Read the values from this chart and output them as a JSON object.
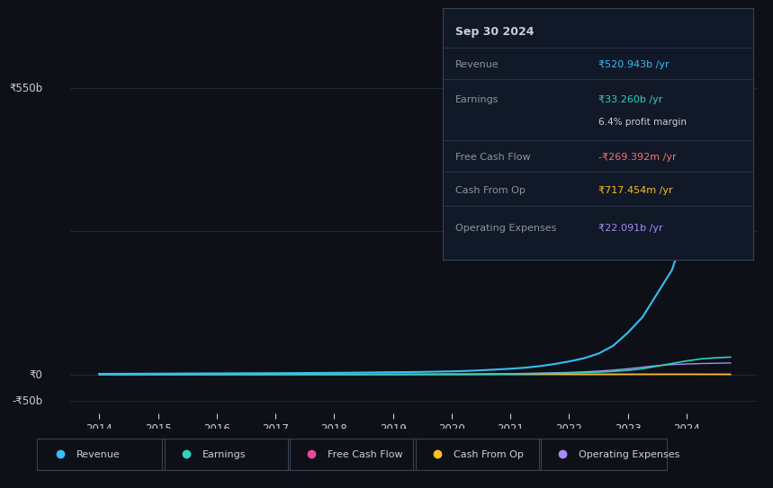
{
  "bg_color": "#0d1117",
  "plot_bg_color": "#0d1117",
  "grid_color": "#1e2a3a",
  "text_color": "#c9d1d9",
  "dim_text_color": "#8b949e",
  "y_labels": [
    "₹550b",
    "₹0",
    "-₹50b"
  ],
  "y_values": [
    550,
    0,
    -50
  ],
  "x_labels": [
    "2014",
    "2015",
    "2016",
    "2017",
    "2018",
    "2019",
    "2020",
    "2021",
    "2022",
    "2023",
    "2024"
  ],
  "x_positions": [
    2014,
    2015,
    2016,
    2017,
    2018,
    2019,
    2020,
    2021,
    2022,
    2023,
    2024
  ],
  "years": [
    2014,
    2014.25,
    2014.5,
    2014.75,
    2015,
    2015.25,
    2015.5,
    2015.75,
    2016,
    2016.25,
    2016.5,
    2016.75,
    2017,
    2017.25,
    2017.5,
    2017.75,
    2018,
    2018.25,
    2018.5,
    2018.75,
    2019,
    2019.25,
    2019.5,
    2019.75,
    2020,
    2020.25,
    2020.5,
    2020.75,
    2021,
    2021.25,
    2021.5,
    2021.75,
    2022,
    2022.25,
    2022.5,
    2022.75,
    2023,
    2023.25,
    2023.5,
    2023.75,
    2024,
    2024.25,
    2024.5,
    2024.75
  ],
  "revenue": [
    1.2,
    1.3,
    1.4,
    1.5,
    1.6,
    1.7,
    1.9,
    2.0,
    2.1,
    2.2,
    2.3,
    2.4,
    2.5,
    2.6,
    2.8,
    3.0,
    3.2,
    3.4,
    3.7,
    4.0,
    4.3,
    4.6,
    5.0,
    5.5,
    6.0,
    6.8,
    8.0,
    9.5,
    11.0,
    13.0,
    16.0,
    20.0,
    25.0,
    31.0,
    40.0,
    55.0,
    80.0,
    110.0,
    155.0,
    200.0,
    280.0,
    380.0,
    460.0,
    520.943
  ],
  "earnings": [
    0.05,
    0.06,
    0.07,
    0.08,
    0.09,
    0.1,
    0.11,
    0.12,
    0.13,
    0.14,
    0.15,
    0.16,
    0.17,
    0.18,
    0.2,
    0.22,
    0.24,
    0.26,
    0.28,
    0.3,
    0.32,
    0.35,
    0.38,
    0.42,
    0.46,
    0.55,
    0.7,
    0.9,
    1.1,
    1.4,
    1.8,
    2.2,
    2.8,
    3.5,
    4.5,
    6.0,
    8.0,
    11.0,
    16.0,
    21.0,
    26.0,
    30.0,
    32.0,
    33.26
  ],
  "free_cash_flow": [
    0.02,
    0.02,
    0.02,
    0.02,
    0.02,
    0.02,
    0.02,
    0.02,
    0.02,
    0.02,
    0.02,
    0.02,
    0.02,
    0.02,
    0.02,
    0.02,
    0.01,
    0.01,
    0.01,
    0.01,
    0.01,
    0.01,
    0.01,
    0.01,
    0.01,
    0.01,
    0.01,
    0.01,
    -0.01,
    -0.02,
    -0.05,
    -0.1,
    -0.2,
    -0.3,
    -0.3,
    -0.3,
    -0.2,
    -0.15,
    -0.1,
    -0.05,
    -0.1,
    -0.15,
    -0.2,
    -0.269
  ],
  "cash_from_op": [
    0.03,
    0.03,
    0.03,
    0.04,
    0.04,
    0.04,
    0.05,
    0.05,
    0.05,
    0.06,
    0.06,
    0.06,
    0.07,
    0.07,
    0.08,
    0.08,
    0.09,
    0.1,
    0.11,
    0.12,
    0.13,
    0.14,
    0.15,
    0.17,
    0.19,
    0.22,
    0.26,
    0.3,
    0.35,
    0.42,
    0.5,
    0.6,
    0.65,
    0.68,
    0.7,
    0.71,
    0.71,
    0.71,
    0.72,
    0.72,
    0.71,
    0.715,
    0.717,
    0.717454
  ],
  "op_expenses": [
    0.15,
    0.16,
    0.17,
    0.18,
    0.19,
    0.2,
    0.21,
    0.22,
    0.24,
    0.25,
    0.26,
    0.28,
    0.3,
    0.32,
    0.35,
    0.38,
    0.4,
    0.43,
    0.47,
    0.51,
    0.55,
    0.6,
    0.66,
    0.73,
    0.8,
    0.92,
    1.1,
    1.3,
    1.6,
    2.0,
    2.5,
    3.2,
    4.0,
    5.0,
    6.5,
    8.5,
    11.0,
    14.0,
    17.0,
    19.0,
    20.0,
    21.0,
    21.5,
    22.091
  ],
  "revenue_color": "#38bdf8",
  "earnings_color": "#2dd4bf",
  "fcf_color": "#f87171",
  "cash_op_color": "#fbbf24",
  "op_exp_color": "#a78bfa",
  "tooltip_bg": "#111827",
  "tooltip_border": "#374151",
  "tooltip_title": "Sep 30 2024",
  "tooltip_revenue_label": "Revenue",
  "tooltip_revenue_value": "₹520.943b /yr",
  "tooltip_earnings_label": "Earnings",
  "tooltip_earnings_value": "₹33.260b /yr",
  "tooltip_margin": "6.4% profit margin",
  "tooltip_fcf_label": "Free Cash Flow",
  "tooltip_fcf_value": "-₹269.392m /yr",
  "tooltip_cashop_label": "Cash From Op",
  "tooltip_cashop_value": "₹717.454m /yr",
  "tooltip_opex_label": "Operating Expenses",
  "tooltip_opex_value": "₹22.091b /yr",
  "legend_labels": [
    "Revenue",
    "Earnings",
    "Free Cash Flow",
    "Cash From Op",
    "Operating Expenses"
  ],
  "legend_colors": [
    "#38bdf8",
    "#2dd4bf",
    "#ec4899",
    "#fbbf24",
    "#a78bfa"
  ],
  "ylim_min": -75,
  "ylim_max": 620
}
